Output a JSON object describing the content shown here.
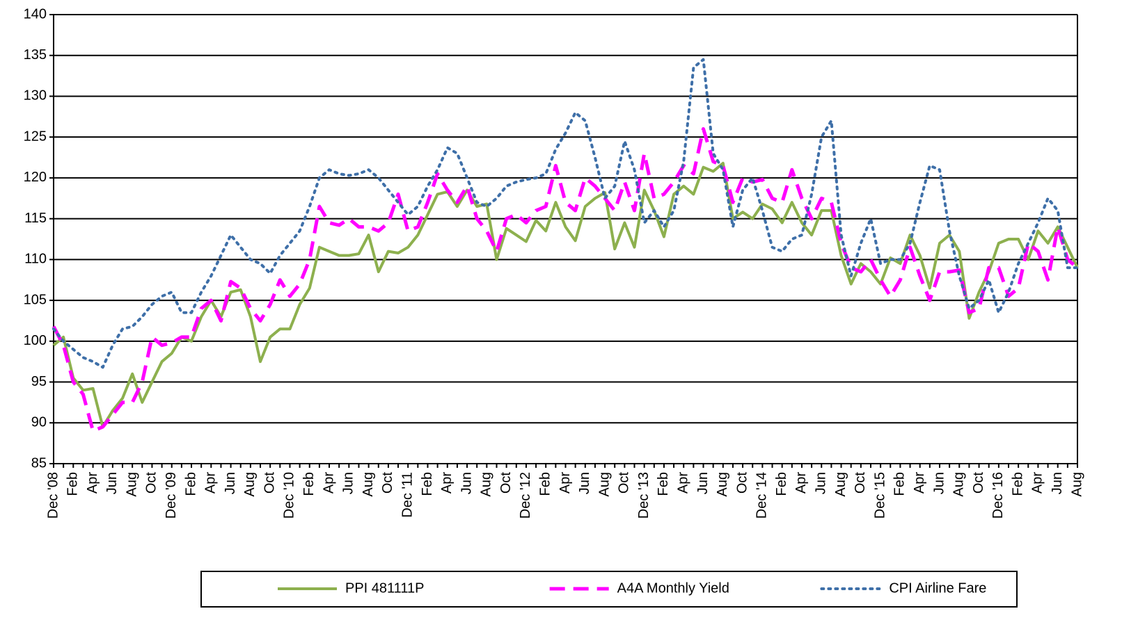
{
  "chart_data": {
    "type": "line",
    "categories": [
      "Dec '08",
      null,
      "Feb",
      null,
      "Apr",
      null,
      "Jun",
      null,
      "Aug",
      null,
      "Oct",
      null,
      "Dec '09",
      null,
      "Feb",
      null,
      "Apr",
      null,
      "Jun",
      null,
      "Aug",
      null,
      "Oct",
      null,
      "Dec '10",
      null,
      "Feb",
      null,
      "Apr",
      null,
      "Jun",
      null,
      "Aug",
      null,
      "Oct",
      null,
      "Dec '11",
      null,
      "Feb",
      null,
      "Apr",
      null,
      "Jun",
      null,
      "Aug",
      null,
      "Oct",
      null,
      "Dec '12",
      null,
      "Feb",
      null,
      "Apr",
      null,
      "Jun",
      null,
      "Aug",
      null,
      "Oct",
      null,
      "Dec '13",
      null,
      "Feb",
      null,
      "Apr",
      null,
      "Jun",
      null,
      "Aug",
      null,
      "Oct",
      null,
      "Dec '14",
      null,
      "Feb",
      null,
      "Apr",
      null,
      "Jun",
      null,
      "Aug",
      null,
      "Oct",
      null,
      "Dec '15",
      null,
      "Feb",
      null,
      "Apr",
      null,
      "Jun",
      null,
      "Aug",
      null,
      "Oct",
      null,
      "Dec '16",
      null,
      "Feb",
      null,
      "Apr",
      null,
      "Jun",
      null,
      "Aug"
    ],
    "series": [
      {
        "name": "PPI 481111P",
        "color": "#8db04e",
        "style": "solid",
        "values": [
          99.5,
          100.5,
          95.5,
          94,
          94.2,
          89.5,
          91.5,
          93,
          96,
          92.5,
          95,
          97.5,
          98.5,
          100.5,
          100,
          103,
          105,
          103,
          106,
          106.3,
          103,
          97.5,
          100.5,
          101.5,
          101.5,
          104.5,
          106.5,
          111.5,
          111,
          110.5,
          110.5,
          110.7,
          113,
          108.5,
          111,
          110.8,
          111.5,
          113,
          115.5,
          118,
          118.3,
          116.5,
          118.5,
          116.5,
          116.8,
          110,
          113.8,
          113,
          112.2,
          114.8,
          113.5,
          117,
          114,
          112.3,
          116.5,
          117.5,
          118.2,
          111.3,
          114.5,
          111.5,
          118.5,
          116,
          112.8,
          118,
          119,
          118,
          121.3,
          120.8,
          121.8,
          115,
          115.8,
          115,
          116.8,
          116.2,
          114.5,
          117,
          114.5,
          113,
          116,
          116,
          110.5,
          107,
          109.5,
          108.5,
          107,
          110.2,
          109.5,
          113,
          110.5,
          106.5,
          112,
          113,
          111,
          102.8,
          106,
          108.5,
          112,
          112.5,
          112.5,
          110,
          113.5,
          112,
          114,
          111.5,
          109
        ]
      },
      {
        "name": "A4A Monthly Yield",
        "color": "#ff00ff",
        "style": "dashed",
        "values": [
          101.8,
          99.5,
          95,
          93.5,
          89,
          89.5,
          91,
          92.5,
          92.5,
          95,
          100.5,
          99.5,
          99.8,
          100.5,
          100.5,
          104,
          105,
          102.5,
          107.3,
          106.5,
          104,
          102.5,
          104.5,
          107.5,
          105.5,
          107,
          110,
          116.5,
          114.5,
          114.2,
          115,
          114,
          114,
          113.5,
          114.5,
          118,
          113.5,
          114,
          117,
          120.5,
          118.5,
          117,
          119,
          115,
          113.5,
          111,
          115,
          115.5,
          114.5,
          116,
          116.5,
          121.5,
          117,
          116,
          120,
          119,
          117.5,
          116,
          119.5,
          116,
          123,
          117.5,
          118,
          119.5,
          121.5,
          120.5,
          126,
          122,
          121.5,
          117,
          120,
          119.5,
          119.8,
          117.5,
          117,
          121,
          117.5,
          115,
          117.5,
          117,
          112,
          109,
          108.5,
          110,
          107.5,
          105.5,
          107.5,
          111.5,
          108,
          105,
          108.5,
          108.5,
          108.7,
          103.5,
          104,
          109,
          109,
          105.5,
          106.5,
          112,
          111,
          107.5,
          114,
          110,
          109
        ]
      },
      {
        "name": "CPI Airline Fare",
        "color": "#3e6fa8",
        "style": "dotted",
        "values": [
          101.5,
          100,
          99,
          98,
          97.5,
          96.8,
          99.5,
          101.5,
          101.8,
          103,
          104.5,
          105.5,
          106,
          103.5,
          103.5,
          106,
          108,
          110.5,
          113,
          111.5,
          110,
          109.5,
          108.3,
          110.5,
          112,
          113.5,
          116.5,
          120,
          121,
          120.5,
          120.3,
          120.5,
          121,
          120,
          118.5,
          117,
          115.5,
          116.5,
          119,
          121,
          123.7,
          123,
          120,
          117,
          116.5,
          117.5,
          119,
          119.5,
          119.8,
          120,
          120.5,
          123.5,
          125.5,
          128,
          127,
          122.5,
          117.5,
          119,
          124.5,
          121,
          114.5,
          116,
          114,
          116,
          122,
          133.5,
          134.5,
          123,
          121,
          114,
          118.5,
          120,
          116,
          111.5,
          111,
          112.5,
          113,
          118,
          125,
          127,
          113,
          108,
          112,
          115,
          109.5,
          110,
          110,
          112,
          117,
          121.5,
          121,
          113.5,
          108,
          104,
          105,
          107.5,
          103.5,
          106,
          109.5,
          112,
          114.5,
          117.5,
          116,
          109,
          109
        ]
      }
    ],
    "ylim": [
      85,
      140
    ],
    "yticks": [
      85,
      90,
      95,
      100,
      105,
      110,
      115,
      120,
      125,
      130,
      135,
      140
    ],
    "grid": true,
    "legend": "bottom"
  }
}
